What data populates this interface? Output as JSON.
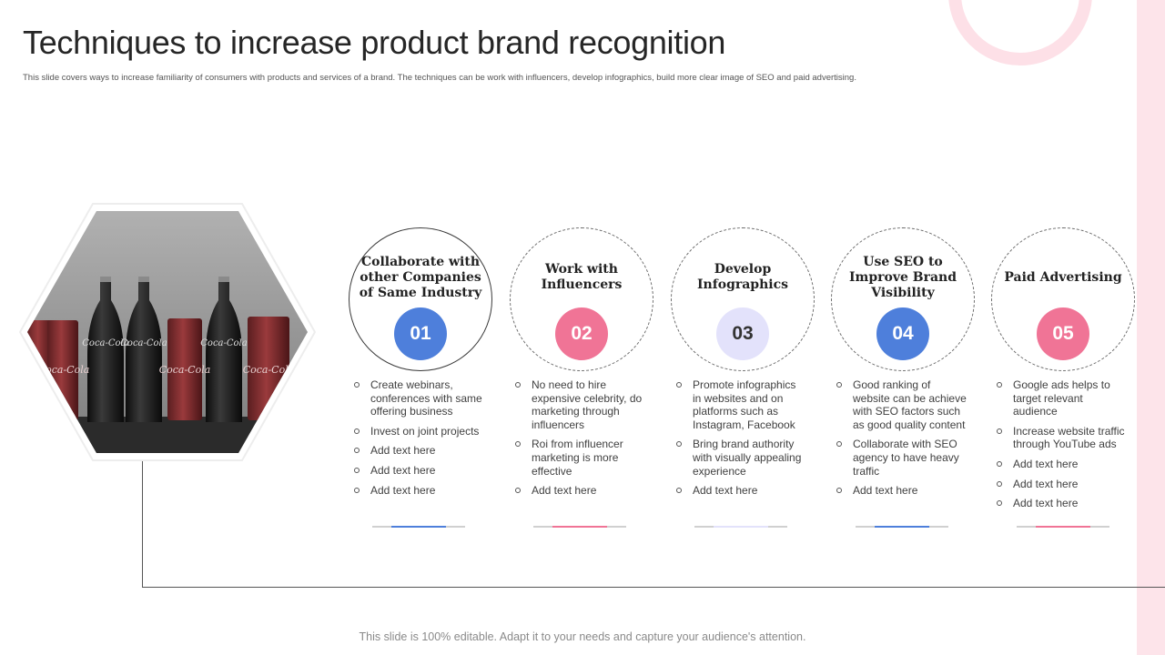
{
  "slide": {
    "title": "Techniques to increase product brand recognition",
    "subtitle": "This slide covers ways to increase familiarity of consumers with products and services of a brand. The techniques can be work with influencers, develop infographics, build more clear image  of SEO and paid advertising.",
    "footer": "This slide is 100% editable. Adapt it to your needs and capture your audience's attention."
  },
  "image": {
    "can_label": "Coca-Cola",
    "icon": "coca-cola-bottles-photo"
  },
  "colors": {
    "blue": "#4e7fdb",
    "pink": "#f07496",
    "lavender": "#e3e2fb",
    "accent_band": "#fde4ea"
  },
  "steps": [
    {
      "number": "01",
      "title": "Collaborate with other Companies of Same Industry",
      "color": "#4e7fdb",
      "text_color": "#ffffff",
      "bullets": [
        "Create webinars, conferences with same offering business",
        "Invest on joint projects",
        "Add text here",
        "Add text here",
        "Add text here"
      ]
    },
    {
      "number": "02",
      "title": "Work with Influencers",
      "color": "#f07496",
      "text_color": "#ffffff",
      "bullets": [
        "No need to hire expensive celebrity, do marketing through influencers",
        "Roi from influencer marketing is more effective",
        "Add text here"
      ]
    },
    {
      "number": "03",
      "title": "Develop Infographics",
      "color": "#e3e2fb",
      "text_color": "#333333",
      "bullets": [
        "Promote infographics in websites and on platforms  such as Instagram, Facebook",
        "Bring brand authority with visually appealing experience",
        "Add text here"
      ]
    },
    {
      "number": "04",
      "title": "Use SEO to Improve Brand Visibility",
      "color": "#4e7fdb",
      "text_color": "#ffffff",
      "bullets": [
        "Good ranking of website can be achieve with SEO factors such as good quality content",
        "Collaborate with SEO agency to have heavy traffic",
        "Add text here"
      ]
    },
    {
      "number": "05",
      "title": "Paid Advertising",
      "color": "#f07496",
      "text_color": "#ffffff",
      "bullets": [
        "Google ads helps to target relevant audience",
        "Increase website traffic through YouTube ads",
        "Add text here",
        "Add text here",
        "Add text here"
      ]
    }
  ]
}
